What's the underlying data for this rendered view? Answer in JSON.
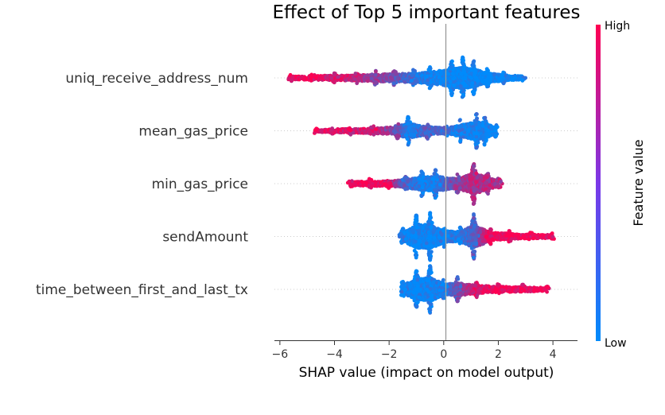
{
  "chart_data": {
    "type": "scatter",
    "subtype": "shap-beeswarm",
    "title": "Effect of Top 5 important features",
    "xlabel": "SHAP value (impact on model output)",
    "xlim": [
      -6.2,
      4.9
    ],
    "xticks": [
      -6,
      -4,
      -2,
      0,
      2,
      4
    ],
    "xtick_labels": [
      "−6",
      "−4",
      "−2",
      "0",
      "2",
      "4"
    ],
    "colorbar": {
      "label": "Feature value",
      "high_label": "High",
      "low_label": "Low",
      "low_color": "#008bfb",
      "high_color": "#ff0052"
    },
    "features": [
      {
        "name": "uniq_receive_address_num",
        "clusters": [
          {
            "x": -5.6,
            "h": 4,
            "v": 0.95
          },
          {
            "x": -4.8,
            "h": 5,
            "v": 0.9
          },
          {
            "x": -4.0,
            "h": 6,
            "v": 0.85
          },
          {
            "x": -3.2,
            "h": 7,
            "v": 0.75
          },
          {
            "x": -2.5,
            "h": 9,
            "v": 0.6
          },
          {
            "x": -1.8,
            "h": 10,
            "v": 0.4
          },
          {
            "x": -1.1,
            "h": 11,
            "v": 0.2
          },
          {
            "x": -0.5,
            "h": 14,
            "v": 0.05
          },
          {
            "x": 0.3,
            "h": 22,
            "v": 0.0
          },
          {
            "x": 0.7,
            "h": 26,
            "v": 0.0
          },
          {
            "x": 1.1,
            "h": 22,
            "v": 0.0
          },
          {
            "x": 1.6,
            "h": 12,
            "v": 0.0
          },
          {
            "x": 2.2,
            "h": 7,
            "v": 0.0
          },
          {
            "x": 2.9,
            "h": 4,
            "v": 0.0
          }
        ]
      },
      {
        "name": "mean_gas_price",
        "clusters": [
          {
            "x": -4.7,
            "h": 3,
            "v": 0.95
          },
          {
            "x": -4.1,
            "h": 4,
            "v": 0.9
          },
          {
            "x": -3.4,
            "h": 5,
            "v": 0.85
          },
          {
            "x": -2.6,
            "h": 6,
            "v": 0.8
          },
          {
            "x": -1.7,
            "h": 10,
            "v": 0.45
          },
          {
            "x": -1.3,
            "h": 18,
            "v": 0.1
          },
          {
            "x": -0.6,
            "h": 10,
            "v": 0.3
          },
          {
            "x": 0.1,
            "h": 7,
            "v": 0.2
          },
          {
            "x": 0.6,
            "h": 14,
            "v": 0.1
          },
          {
            "x": 1.2,
            "h": 22,
            "v": 0.05
          },
          {
            "x": 1.5,
            "h": 18,
            "v": 0.05
          },
          {
            "x": 1.9,
            "h": 8,
            "v": 0.0
          }
        ]
      },
      {
        "name": "min_gas_price",
        "clusters": [
          {
            "x": -3.4,
            "h": 4,
            "v": 0.95
          },
          {
            "x": -2.7,
            "h": 6,
            "v": 0.95
          },
          {
            "x": -2.0,
            "h": 6,
            "v": 0.9
          },
          {
            "x": -1.4,
            "h": 10,
            "v": 0.3
          },
          {
            "x": -0.8,
            "h": 16,
            "v": 0.1
          },
          {
            "x": -0.3,
            "h": 18,
            "v": 0.1
          },
          {
            "x": 0.5,
            "h": 12,
            "v": 0.55
          },
          {
            "x": 1.1,
            "h": 26,
            "v": 0.7
          },
          {
            "x": 1.6,
            "h": 14,
            "v": 0.7
          },
          {
            "x": 2.0,
            "h": 7,
            "v": 0.7
          }
        ]
      },
      {
        "name": "sendAmount",
        "clusters": [
          {
            "x": -1.5,
            "h": 10,
            "v": 0.05
          },
          {
            "x": -1.0,
            "h": 28,
            "v": 0.0
          },
          {
            "x": -0.5,
            "h": 30,
            "v": 0.0
          },
          {
            "x": 0.0,
            "h": 14,
            "v": 0.05
          },
          {
            "x": 0.6,
            "h": 12,
            "v": 0.15
          },
          {
            "x": 1.1,
            "h": 28,
            "v": 0.3
          },
          {
            "x": 1.7,
            "h": 10,
            "v": 0.9
          },
          {
            "x": 2.4,
            "h": 7,
            "v": 0.95
          },
          {
            "x": 3.2,
            "h": 5,
            "v": 0.95
          },
          {
            "x": 4.0,
            "h": 4,
            "v": 0.95
          }
        ]
      },
      {
        "name": "time_between_first_and_last_tx",
        "clusters": [
          {
            "x": -1.5,
            "h": 10,
            "v": 0.05
          },
          {
            "x": -1.0,
            "h": 24,
            "v": 0.0
          },
          {
            "x": -0.5,
            "h": 30,
            "v": 0.0
          },
          {
            "x": 0.0,
            "h": 12,
            "v": 0.1
          },
          {
            "x": 0.5,
            "h": 16,
            "v": 0.4
          },
          {
            "x": 1.2,
            "h": 10,
            "v": 0.85
          },
          {
            "x": 2.0,
            "h": 7,
            "v": 0.95
          },
          {
            "x": 2.9,
            "h": 6,
            "v": 0.95
          },
          {
            "x": 3.8,
            "h": 4,
            "v": 0.95
          }
        ]
      }
    ]
  }
}
